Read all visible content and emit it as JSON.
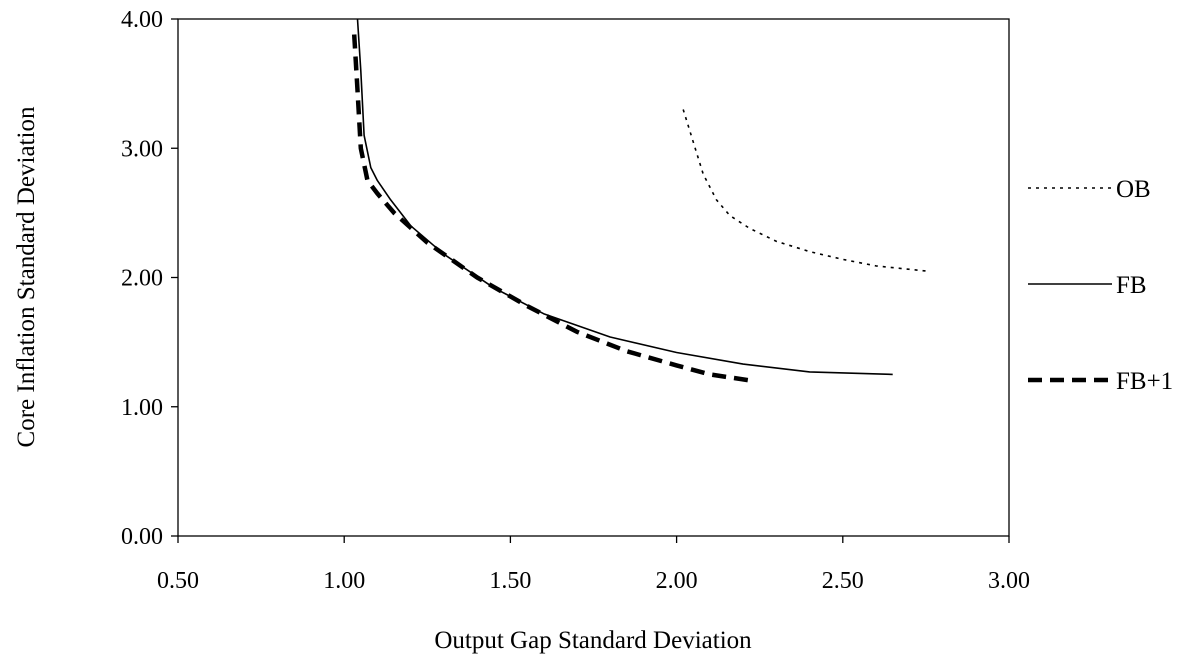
{
  "chart_data": {
    "type": "line",
    "title": "",
    "xlabel": "Output Gap Standard Deviation",
    "ylabel": "Core Inflation Standard Deviation",
    "xlim": [
      0.5,
      3.0
    ],
    "ylim": [
      0.0,
      4.0
    ],
    "xticks": [
      "0.50",
      "1.00",
      "1.50",
      "2.00",
      "2.50",
      "3.00"
    ],
    "yticks": [
      "0.00",
      "1.00",
      "2.00",
      "3.00",
      "4.00"
    ],
    "grid": false,
    "legend_position": "right",
    "series": [
      {
        "name": "OB",
        "style": "dotted",
        "width": 1.6,
        "x": [
          2.02,
          2.05,
          2.08,
          2.12,
          2.16,
          2.22,
          2.3,
          2.4,
          2.5,
          2.6,
          2.75
        ],
        "y": [
          3.3,
          3.05,
          2.8,
          2.6,
          2.48,
          2.38,
          2.28,
          2.2,
          2.14,
          2.09,
          2.05
        ]
      },
      {
        "name": "FB",
        "style": "solid",
        "width": 1.6,
        "x": [
          1.04,
          1.05,
          1.06,
          1.08,
          1.1,
          1.14,
          1.2,
          1.3,
          1.45,
          1.6,
          1.8,
          2.0,
          2.2,
          2.4,
          2.65
        ],
        "y": [
          4.0,
          3.6,
          3.1,
          2.85,
          2.75,
          2.6,
          2.4,
          2.18,
          1.92,
          1.72,
          1.54,
          1.42,
          1.33,
          1.27,
          1.25
        ]
      },
      {
        "name": "FB+1",
        "style": "dashed",
        "width": 4.5,
        "x": [
          1.03,
          1.04,
          1.05,
          1.07,
          1.1,
          1.15,
          1.25,
          1.4,
          1.55,
          1.7,
          1.85,
          2.0,
          2.1,
          2.23
        ],
        "y": [
          3.88,
          3.45,
          3.0,
          2.75,
          2.65,
          2.5,
          2.27,
          2.0,
          1.78,
          1.58,
          1.43,
          1.32,
          1.25,
          1.2
        ]
      }
    ]
  }
}
